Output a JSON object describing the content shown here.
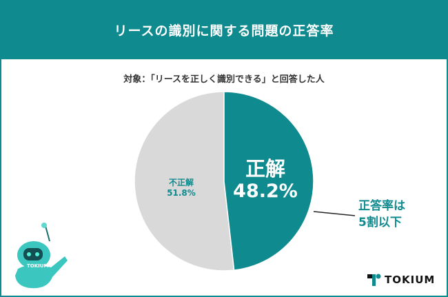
{
  "header": {
    "title": "リースの識別に関する問題の正答率"
  },
  "chart_data": {
    "type": "pie",
    "title": "リースの識別に関する問題の正答率",
    "subtitle": "対象：「リースを正しく識別できる」と回答した人",
    "slices": [
      {
        "label": "正解",
        "value": 48.2,
        "value_label": "48.2%",
        "color": "#0f8a8e"
      },
      {
        "label": "不正解",
        "value": 51.8,
        "value_label": "51.8%",
        "color": "#d9d9d9"
      }
    ],
    "annotation": [
      "正答率は",
      "5割以下"
    ]
  },
  "logo": {
    "text": "TOKIUM"
  },
  "mascot": {
    "text": "TOKIUM"
  }
}
